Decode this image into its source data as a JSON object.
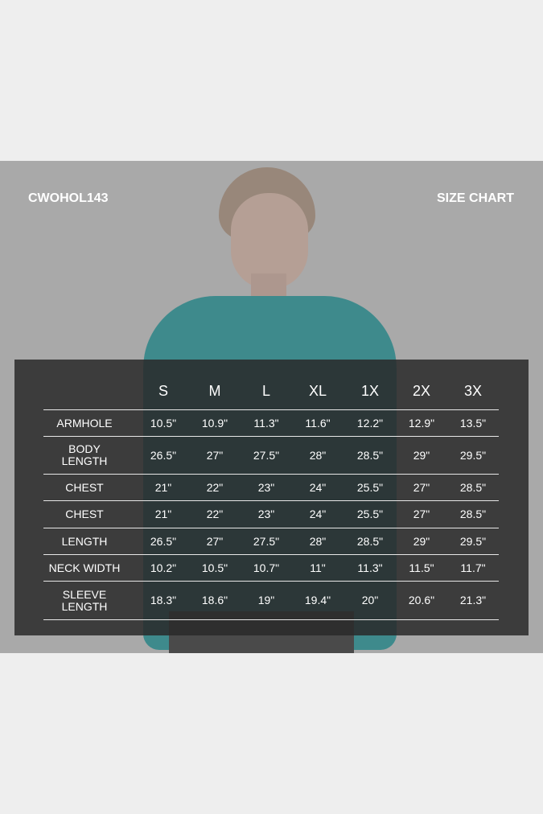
{
  "product_code": "CWOHOL143",
  "title": "SIZE CHART",
  "sizes": [
    "S",
    "M",
    "L",
    "XL",
    "1X",
    "2X",
    "3X"
  ],
  "rows": [
    {
      "label": "ARMHOLE",
      "values": [
        "10.5\"",
        "10.9\"",
        "11.3\"",
        "11.6\"",
        "12.2\"",
        "12.9\"",
        "13.5\""
      ]
    },
    {
      "label": "BODY\nLENGTH",
      "values": [
        "26.5\"",
        "27\"",
        "27.5\"",
        "28\"",
        "28.5\"",
        "29\"",
        "29.5\""
      ]
    },
    {
      "label": "CHEST",
      "values": [
        "21\"",
        "22\"",
        "23\"",
        "24\"",
        "25.5\"",
        "27\"",
        "28.5\""
      ]
    },
    {
      "label": "CHEST",
      "values": [
        "21\"",
        "22\"",
        "23\"",
        "24\"",
        "25.5\"",
        "27\"",
        "28.5\""
      ]
    },
    {
      "label": "LENGTH",
      "values": [
        "26.5\"",
        "27\"",
        "27.5\"",
        "28\"",
        "28.5\"",
        "29\"",
        "29.5\""
      ]
    },
    {
      "label": "NECK WIDTH",
      "values": [
        "10.2\"",
        "10.5\"",
        "10.7\"",
        "11\"",
        "11.3\"",
        "11.5\"",
        "11.7\""
      ]
    },
    {
      "label": "SLEEVE\nLENGTH",
      "values": [
        "18.3\"",
        "18.6\"",
        "19\"",
        "19.4\"",
        "20\"",
        "20.6\"",
        "21.3\""
      ]
    }
  ],
  "colors": {
    "background": "#eeeeee",
    "panel": "#2a2a2a",
    "garment": "#3e8a8c"
  }
}
